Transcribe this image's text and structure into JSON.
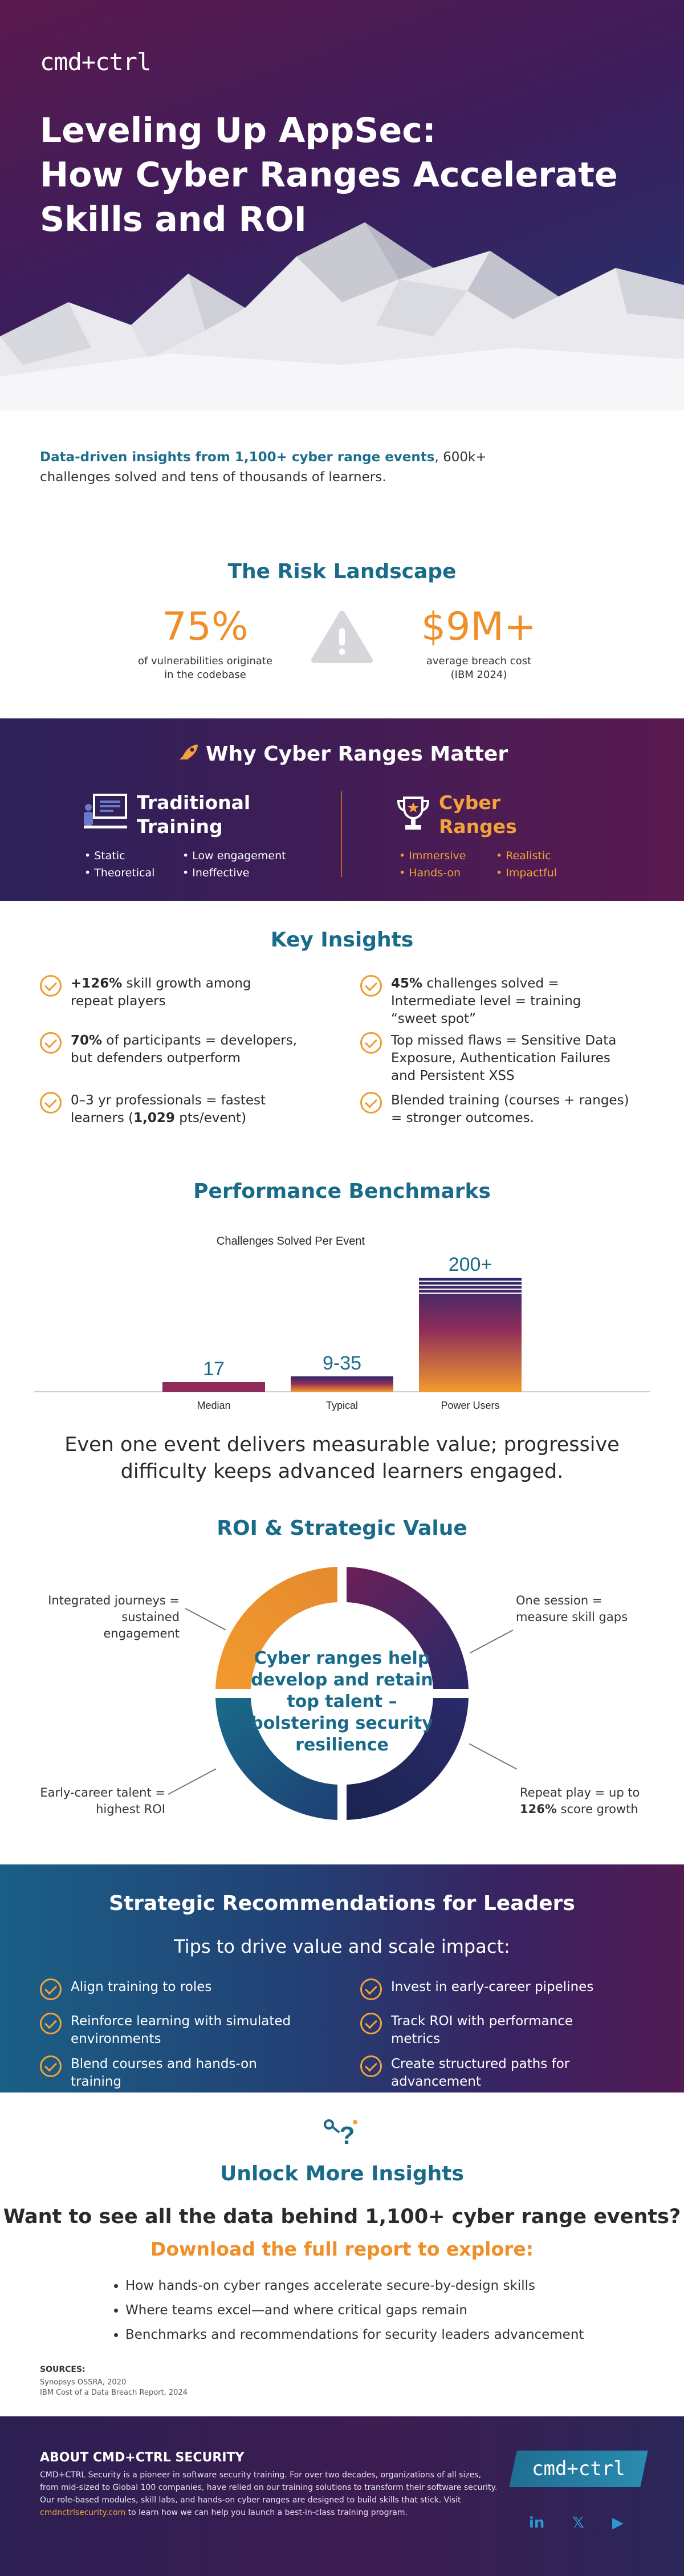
{
  "hero": {
    "logo": "cmd+ctrl",
    "title_lines": [
      "Leveling Up AppSec:",
      "How Cyber Ranges Accelerate",
      "Skills and ROI"
    ],
    "intro_highlight": "Data-driven insights from 1,100+ cyber range events",
    "intro_rest": ", 600k+ challenges solved and tens of thousands of learners."
  },
  "risk": {
    "title": "The Risk Landscape",
    "stat1_value": "75%",
    "stat1_caption": [
      "of vulnerabilities originate",
      "in the codebase"
    ],
    "stat2_value": "$9M+",
    "stat2_caption": [
      "average breach cost",
      "(IBM 2024)"
    ],
    "icon": "warning-triangle-icon"
  },
  "why": {
    "title": "Why Cyber Ranges Matter",
    "traditional_title": [
      "Traditional",
      "Training"
    ],
    "traditional_items": [
      "Static",
      "Low engagement",
      "Theoretical",
      "Ineffective"
    ],
    "ranges_title": [
      "Cyber",
      "Ranges"
    ],
    "ranges_items": [
      "Immersive",
      "Realistic",
      "Hands-on",
      "Impactful"
    ],
    "colors": {
      "accent": "#f2a33a",
      "divider": "#c0621f"
    }
  },
  "insights": {
    "title": "Key Insights",
    "left": [
      {
        "bold": "+126%",
        "rest": " skill growth among",
        "line2": "repeat players"
      },
      {
        "bold": "70%",
        "rest": " of participants = developers,",
        "line2": "but defenders outperform"
      },
      {
        "pre": "0–3 yr professionals = fastest",
        "line2_pre": "learners (",
        "line2_bold": "1,029",
        "line2_post": " pts/event)"
      }
    ],
    "right": [
      {
        "bold": "45%",
        "rest": " challenges solved =",
        "line2": "Intermediate level = training",
        "line3": "“sweet spot”"
      },
      {
        "pre": "Top missed flaws = Sensitive Data",
        "line2": "Exposure, Authentication Failures",
        "line3": "and Persistent XSS"
      },
      {
        "pre": "Blended training (courses + ranges)",
        "line2": "= stronger outcomes."
      }
    ]
  },
  "performance": {
    "title": "Performance Benchmarks",
    "summary": "Even one event delivers measurable value; progressive difficulty keeps advanced learners engaged."
  },
  "chart_data": {
    "type": "bar",
    "title": "Challenges Solved Per Event",
    "categories": [
      "Median",
      "Typical",
      "Power Users"
    ],
    "values": [
      17,
      27,
      200
    ],
    "value_labels": [
      "17",
      "9-35",
      "200+"
    ],
    "ylim": [
      0,
      200
    ],
    "colors": {
      "top": "#2a2a6a",
      "mid": "#8e2b5a",
      "bottom": "#f29a2e"
    }
  },
  "roi": {
    "title": "ROI & Strategic Value",
    "center": "Cyber ranges help develop and retain top talent – bolstering security resilience",
    "tl": [
      "Integrated journeys =",
      "sustained engagement"
    ],
    "tr": [
      "One session =",
      "measure skill gaps"
    ],
    "bl": [
      "Early-career talent =",
      "highest ROI"
    ],
    "br_line1": "Repeat play = up to",
    "br_bold": "126%",
    "br_rest": " score growth"
  },
  "recs": {
    "title": "Strategic Recommendations for Leaders",
    "sub": "Tips to drive value and scale impact:",
    "left": [
      [
        "Align training to roles"
      ],
      [
        "Reinforce learning with simulated",
        "environments"
      ],
      [
        "Blend courses and hands-on",
        "training"
      ]
    ],
    "right": [
      [
        "Invest in early-career pipelines"
      ],
      [
        "Track ROI with performance",
        "metrics"
      ],
      [
        "Create structured paths for",
        "advancement"
      ]
    ]
  },
  "unlock": {
    "title": "Unlock More Insights",
    "question": "Want to see all the data behind 1,100+ cyber range events?",
    "download": "Download the full report to explore:",
    "bullets": [
      "How hands-on cyber ranges accelerate secure-by-design skills",
      "Where teams excel—and where critical gaps remain",
      "Benchmarks and recommendations for security leaders advancement"
    ],
    "sources_heading": "SOURCES:",
    "sources": [
      "Synopsys OSSRA, 2020",
      "IBM Cost of a Data Breach Report, 2024"
    ]
  },
  "footer": {
    "about_heading": "ABOUT CMD+CTRL SECURITY",
    "about_text": "CMD+CTRL Security is a pioneer in software security training. For over two decades, organizations of all sizes, from mid-sized to Global 100 companies, have relied on our training solutions to transform their software security. Our role-based modules, skill labs, and hands-on cyber ranges are designed to build skills that stick. Visit ",
    "link": "cmdnctrlsecurity.com",
    "about_tail": " to learn how we can help you launch a best-in-class training program.",
    "logo": "cmd+ctrl",
    "social": [
      "in",
      "𝕏",
      "▶"
    ]
  }
}
